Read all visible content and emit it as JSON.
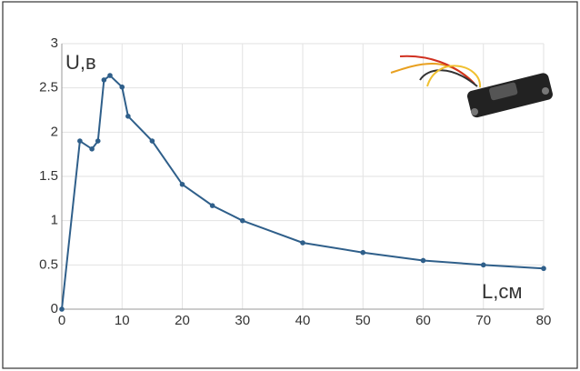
{
  "chart_data": {
    "type": "line",
    "y_label": "U,в",
    "x_label": "L,см",
    "x": [
      0,
      3,
      5,
      6,
      7,
      8,
      10,
      11,
      15,
      20,
      25,
      30,
      40,
      50,
      60,
      70,
      80
    ],
    "series": [
      {
        "color": "#2f5f8a",
        "values": [
          0,
          1.9,
          1.81,
          1.9,
          2.59,
          2.64,
          2.51,
          2.18,
          1.9,
          1.41,
          1.17,
          1.0,
          0.75,
          0.64,
          0.55,
          0.5,
          0.46
        ]
      }
    ],
    "xlim": [
      0,
      80
    ],
    "ylim": [
      0,
      3
    ],
    "xticks": [
      0,
      10,
      20,
      30,
      40,
      50,
      60,
      70,
      80
    ],
    "yticks": [
      0,
      0.5,
      1,
      1.5,
      2,
      2.5,
      3
    ],
    "grid": true
  }
}
